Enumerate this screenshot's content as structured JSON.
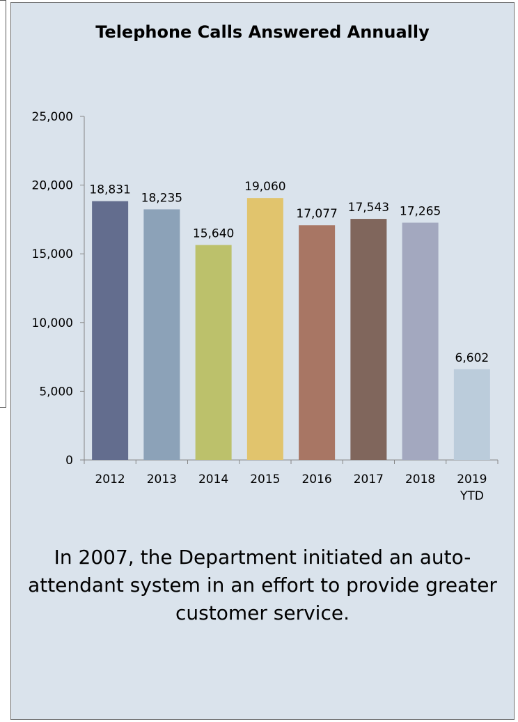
{
  "chart_data": {
    "type": "bar",
    "title": "Telephone Calls  Answered Annually",
    "categories": [
      "2012",
      "2013",
      "2014",
      "2015",
      "2016",
      "2017",
      "2018",
      "2019 YTD"
    ],
    "values": [
      18831,
      18235,
      15640,
      19060,
      17077,
      17543,
      17265,
      6602
    ],
    "data_labels": [
      "18,831",
      "18,235",
      "15,640",
      "19,060",
      "17,077",
      "17,543",
      "17,265",
      "6,602"
    ],
    "colors": [
      "#636d8e",
      "#8ca2b8",
      "#bcc16b",
      "#e1c46d",
      "#a87664",
      "#80665c",
      "#a3a8bf",
      "#bbccdb"
    ],
    "ylim": [
      0,
      25000
    ],
    "yticks": [
      0,
      5000,
      10000,
      15000,
      20000,
      25000
    ],
    "ytick_labels": [
      "0",
      "5,000",
      "10,000",
      "15,000",
      "20,000",
      "25,000"
    ],
    "xlabel": "",
    "ylabel": "",
    "grid": false,
    "legend": "none"
  },
  "caption": "In 2007, the Department initiated an auto-attendant system in an effort to provide greater customer service."
}
